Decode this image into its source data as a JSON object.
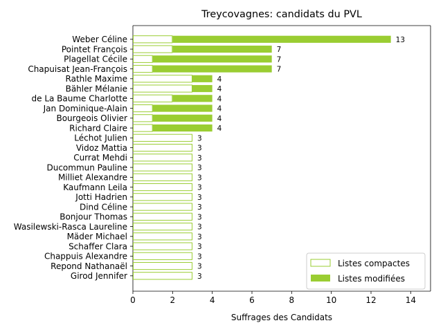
{
  "chart_data": {
    "type": "bar",
    "orientation": "horizontal",
    "stacked": true,
    "title": "Treycovagnes: candidats du PVL",
    "xlabel": "Suffrages des Candidats",
    "ylabel": "",
    "xlim": [
      0,
      15
    ],
    "xticks": [
      0,
      2,
      4,
      6,
      8,
      10,
      12,
      14
    ],
    "grid": false,
    "legend_position": "lower-right",
    "colors": {
      "compact_edge": "#9acd32",
      "modified_fill": "#9acd32",
      "compact_fill": "#ffffff"
    },
    "categories": [
      "Weber Céline",
      "Pointet François",
      "Plagellat Cécile",
      "Chapuisat Jean-François",
      "Rathle Maxime",
      "Bähler Mélanie",
      "de La Baume Charlotte",
      "Jan Dominique-Alain",
      "Bourgeois Olivier",
      "Richard Claire",
      "Léchot Julien",
      "Vidoz Mattia",
      "Currat Mehdi",
      "Ducommun Pauline",
      "Milliet Alexandre",
      "Kaufmann Leila",
      "Jotti Hadrien",
      "Dind Céline",
      "Bonjour Thomas",
      "Wasilewski-Rasca Laureline",
      "Mäder Michael",
      "Schaffer Clara",
      "Chappuis Alexandre",
      "Repond Nathanaël",
      "Girod Jennifer"
    ],
    "series": [
      {
        "name": "Listes compactes",
        "values": [
          2,
          2,
          1,
          1,
          3,
          3,
          2,
          1,
          1,
          1,
          3,
          3,
          3,
          3,
          3,
          3,
          3,
          3,
          3,
          3,
          3,
          3,
          3,
          3,
          3
        ]
      },
      {
        "name": "Listes modifiées",
        "values": [
          11,
          5,
          6,
          6,
          1,
          1,
          2,
          3,
          3,
          3,
          0,
          0,
          0,
          0,
          0,
          0,
          0,
          0,
          0,
          0,
          0,
          0,
          0,
          0,
          0
        ]
      }
    ],
    "totals": [
      13,
      7,
      7,
      7,
      4,
      4,
      4,
      4,
      4,
      4,
      3,
      3,
      3,
      3,
      3,
      3,
      3,
      3,
      3,
      3,
      3,
      3,
      3,
      3,
      3
    ]
  }
}
